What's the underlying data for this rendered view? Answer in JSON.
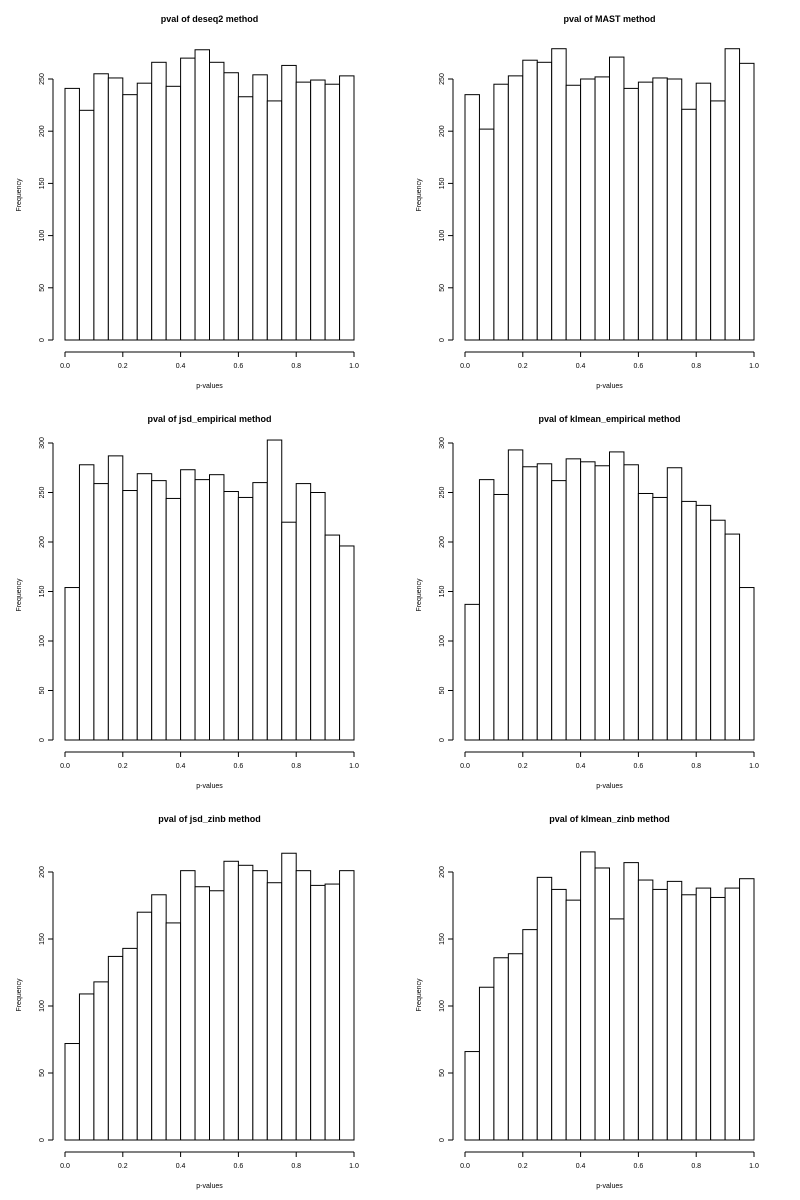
{
  "chart_data": [
    {
      "type": "bar",
      "title": "pval of deseq2 method",
      "xlabel": "p-values",
      "ylabel": "Frequency",
      "bin_width": 0.05,
      "xlim": [
        0,
        1
      ],
      "ylim": [
        0,
        250
      ],
      "xticks": [
        "0.0",
        "0.2",
        "0.4",
        "0.6",
        "0.8",
        "1.0"
      ],
      "yticks": [
        "0",
        "50",
        "100",
        "150",
        "200",
        "250"
      ],
      "values": [
        241,
        220,
        255,
        251,
        235,
        246,
        266,
        243,
        270,
        278,
        266,
        256,
        233,
        254,
        229,
        263,
        247,
        249,
        245,
        253
      ]
    },
    {
      "type": "bar",
      "title": "pval of MAST method",
      "xlabel": "p-values",
      "ylabel": "Frequency",
      "bin_width": 0.05,
      "xlim": [
        0,
        1
      ],
      "ylim": [
        0,
        250
      ],
      "xticks": [
        "0.0",
        "0.2",
        "0.4",
        "0.6",
        "0.8",
        "1.0"
      ],
      "yticks": [
        "0",
        "50",
        "100",
        "150",
        "200",
        "250"
      ],
      "values": [
        235,
        202,
        245,
        253,
        268,
        266,
        279,
        244,
        250,
        252,
        271,
        241,
        247,
        251,
        250,
        221,
        246,
        229,
        279,
        265
      ]
    },
    {
      "type": "bar",
      "title": "pval of jsd_empirical method",
      "xlabel": "p-values",
      "ylabel": "Frequency",
      "bin_width": 0.05,
      "xlim": [
        0,
        1
      ],
      "ylim": [
        0,
        300
      ],
      "xticks": [
        "0.0",
        "0.2",
        "0.4",
        "0.6",
        "0.8",
        "1.0"
      ],
      "yticks": [
        "0",
        "50",
        "100",
        "150",
        "200",
        "250",
        "300"
      ],
      "values": [
        154,
        278,
        259,
        287,
        252,
        269,
        262,
        244,
        273,
        263,
        268,
        251,
        245,
        260,
        303,
        220,
        259,
        250,
        207,
        196
      ]
    },
    {
      "type": "bar",
      "title": "pval of klmean_empirical method",
      "xlabel": "p-values",
      "ylabel": "Frequency",
      "bin_width": 0.05,
      "xlim": [
        0,
        1
      ],
      "ylim": [
        0,
        300
      ],
      "xticks": [
        "0.0",
        "0.2",
        "0.4",
        "0.6",
        "0.8",
        "1.0"
      ],
      "yticks": [
        "0",
        "50",
        "100",
        "150",
        "200",
        "250",
        "300"
      ],
      "values": [
        137,
        263,
        248,
        293,
        276,
        279,
        262,
        284,
        281,
        277,
        291,
        278,
        249,
        245,
        275,
        241,
        237,
        222,
        208,
        154
      ]
    },
    {
      "type": "bar",
      "title": "pval of jsd_zinb method",
      "xlabel": "p-values",
      "ylabel": "Frequency",
      "bin_width": 0.05,
      "xlim": [
        0,
        1
      ],
      "ylim": [
        0,
        200
      ],
      "xticks": [
        "0.0",
        "0.2",
        "0.4",
        "0.6",
        "0.8",
        "1.0"
      ],
      "yticks": [
        "0",
        "50",
        "100",
        "150",
        "200"
      ],
      "values": [
        72,
        109,
        118,
        137,
        143,
        170,
        183,
        162,
        201,
        189,
        186,
        208,
        205,
        201,
        192,
        214,
        201,
        190,
        191,
        201
      ]
    },
    {
      "type": "bar",
      "title": "pval of klmean_zinb method",
      "xlabel": "p-values",
      "ylabel": "Frequency",
      "bin_width": 0.05,
      "xlim": [
        0,
        1
      ],
      "ylim": [
        0,
        200
      ],
      "xticks": [
        "0.0",
        "0.2",
        "0.4",
        "0.6",
        "0.8",
        "1.0"
      ],
      "yticks": [
        "0",
        "50",
        "100",
        "150",
        "200"
      ],
      "values": [
        66,
        114,
        136,
        139,
        157,
        196,
        187,
        179,
        215,
        203,
        165,
        207,
        194,
        187,
        193,
        183,
        188,
        181,
        188,
        195
      ]
    }
  ]
}
